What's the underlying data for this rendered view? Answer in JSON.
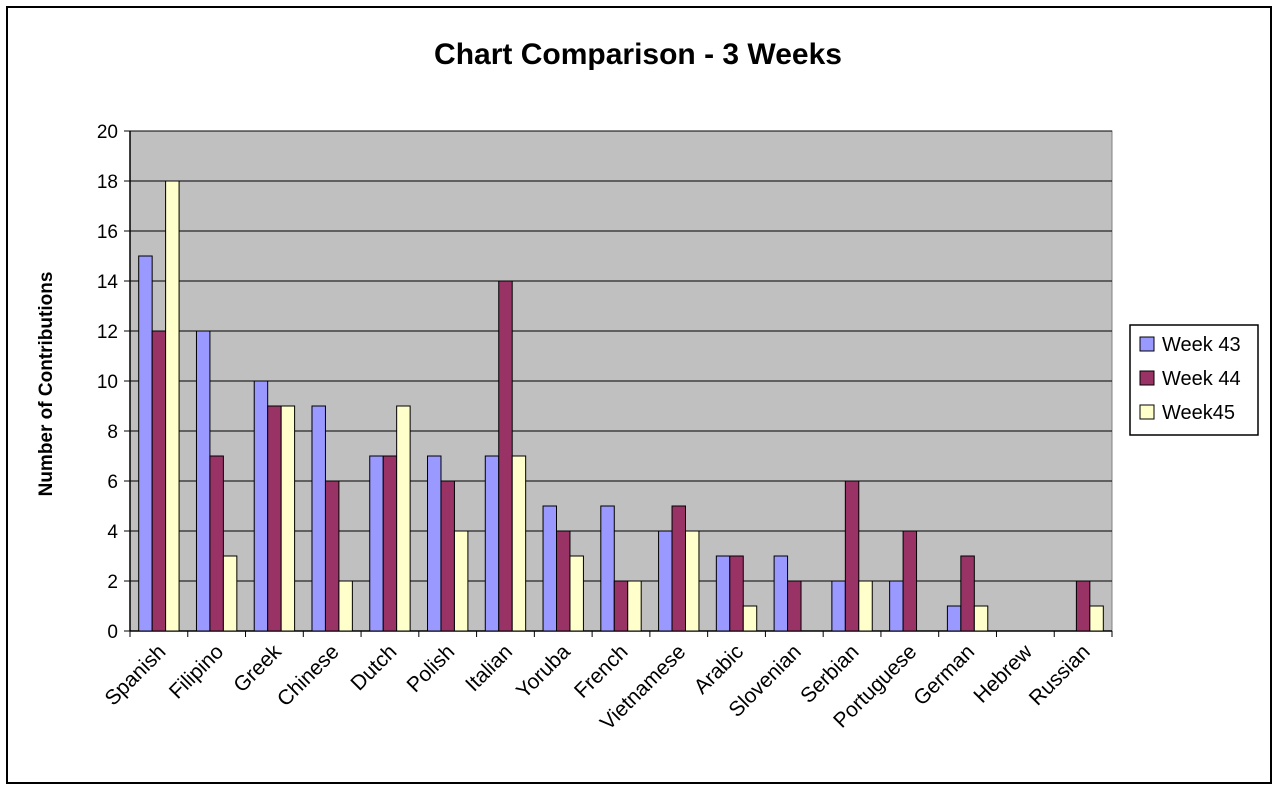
{
  "chart_data": {
    "type": "bar",
    "title": "Chart Comparison - 3 Weeks",
    "xlabel": "",
    "ylabel": "Number of Contributions",
    "ylim": [
      0,
      20
    ],
    "yticks": [
      "0",
      "2",
      "4",
      "6",
      "8",
      "10",
      "12",
      "14",
      "16",
      "18",
      "20"
    ],
    "grid": true,
    "legend_position": "right",
    "categories": [
      "Spanish",
      "Filipino",
      "Greek",
      "Chinese",
      "Dutch",
      "Polish",
      "Italian",
      "Yoruba",
      "French",
      "Vietnamese",
      "Arabic",
      "Slovenian",
      "Serbian",
      "Portuguese",
      "German",
      "Hebrew",
      "Russian"
    ],
    "series": [
      {
        "name": "Week 43",
        "color": "#9999ff",
        "values": [
          15,
          12,
          10,
          9,
          7,
          7,
          7,
          5,
          5,
          4,
          3,
          3,
          2,
          2,
          1,
          0,
          0
        ]
      },
      {
        "name": "Week 44",
        "color": "#993366",
        "values": [
          12,
          7,
          9,
          6,
          7,
          6,
          14,
          4,
          2,
          5,
          3,
          2,
          6,
          4,
          3,
          0,
          2
        ]
      },
      {
        "name": "Week45",
        "color": "#ffffcc",
        "values": [
          18,
          3,
          9,
          2,
          9,
          4,
          7,
          3,
          2,
          4,
          1,
          0,
          2,
          0,
          1,
          0,
          1
        ]
      }
    ],
    "plot_background": "#c0c0c0"
  }
}
